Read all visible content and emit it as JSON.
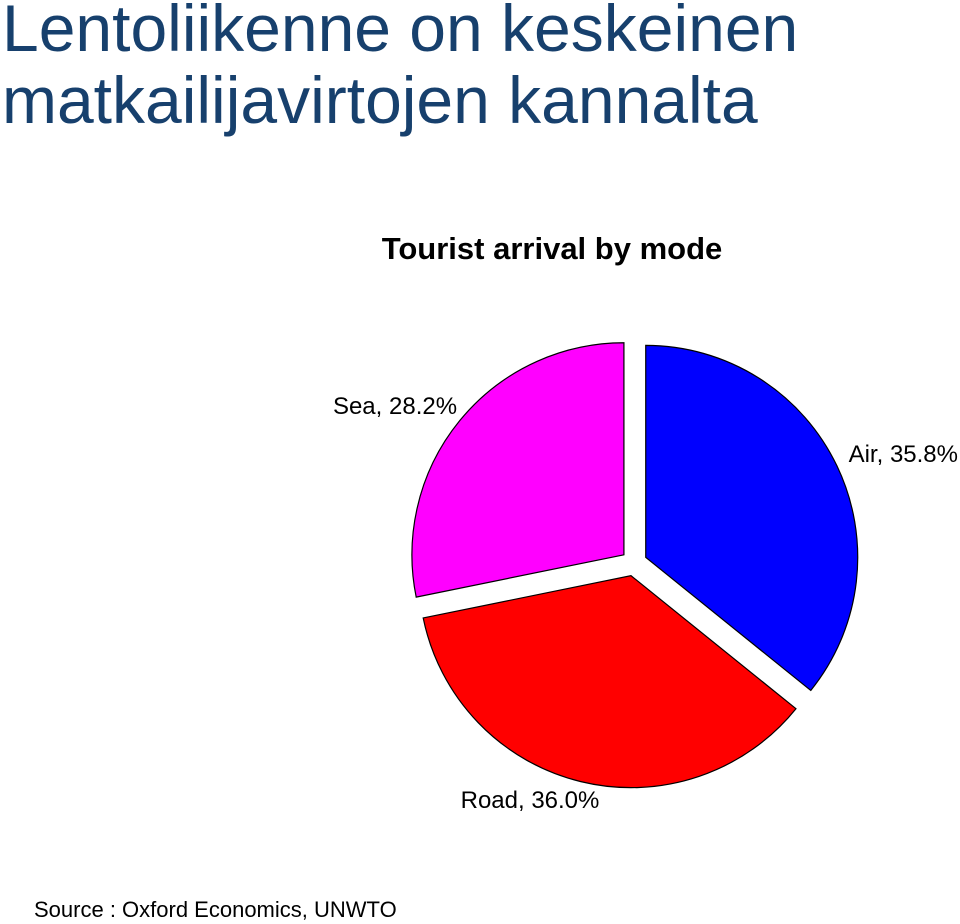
{
  "slide": {
    "title_line1": "Lentoliikenne on keskeinen",
    "title_line2": "matkailijavirtojen kannalta",
    "source": "Source : Oxford Economics, UNWTO"
  },
  "chart_data": {
    "type": "pie",
    "title": "Tourist arrival by mode",
    "slices": [
      {
        "name": "Air",
        "value": 35.8,
        "label": "Air, 35.8%",
        "color": "#0000ff"
      },
      {
        "name": "Road",
        "value": 36.0,
        "label": "Road, 36.0%",
        "color": "#ff0000"
      },
      {
        "name": "Sea",
        "value": 28.2,
        "label": "Sea, 28.2%",
        "color": "#ff00ff"
      }
    ],
    "start": "12 o'clock, clockwise",
    "exploded": true,
    "slice_outline_color": "#000000"
  }
}
